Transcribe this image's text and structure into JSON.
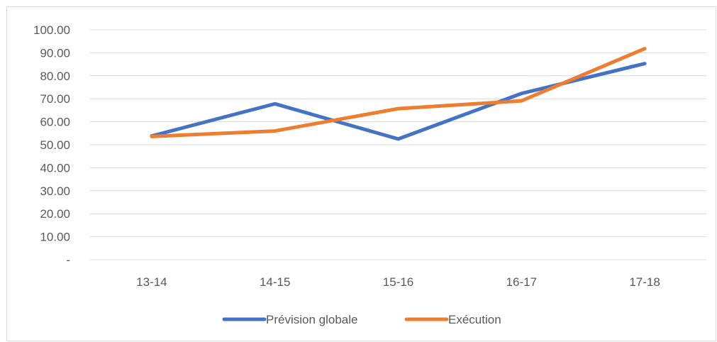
{
  "chart_data": {
    "type": "line",
    "title": "",
    "xlabel": "",
    "ylabel": "",
    "categories": [
      "13-14",
      "14-15",
      "15-16",
      "16-17",
      "17-18"
    ],
    "ylim": [
      0,
      100
    ],
    "yticks": [
      0,
      10,
      20,
      30,
      40,
      50,
      60,
      70,
      80,
      90,
      100
    ],
    "ytick_labels": [
      "-",
      "10.00",
      "20.00",
      "30.00",
      "40.00",
      "50.00",
      "60.00",
      "70.00",
      "80.00",
      "90.00",
      "100.00"
    ],
    "grid": true,
    "legend_position": "bottom",
    "series": [
      {
        "name": "Prévision globale",
        "color": "#4472c4",
        "values": [
          53.8,
          67.8,
          52.5,
          72.3,
          85.3
        ]
      },
      {
        "name": "Exécution",
        "color": "#ed7d31",
        "values": [
          53.6,
          56.0,
          65.7,
          69.1,
          91.8
        ]
      }
    ]
  }
}
